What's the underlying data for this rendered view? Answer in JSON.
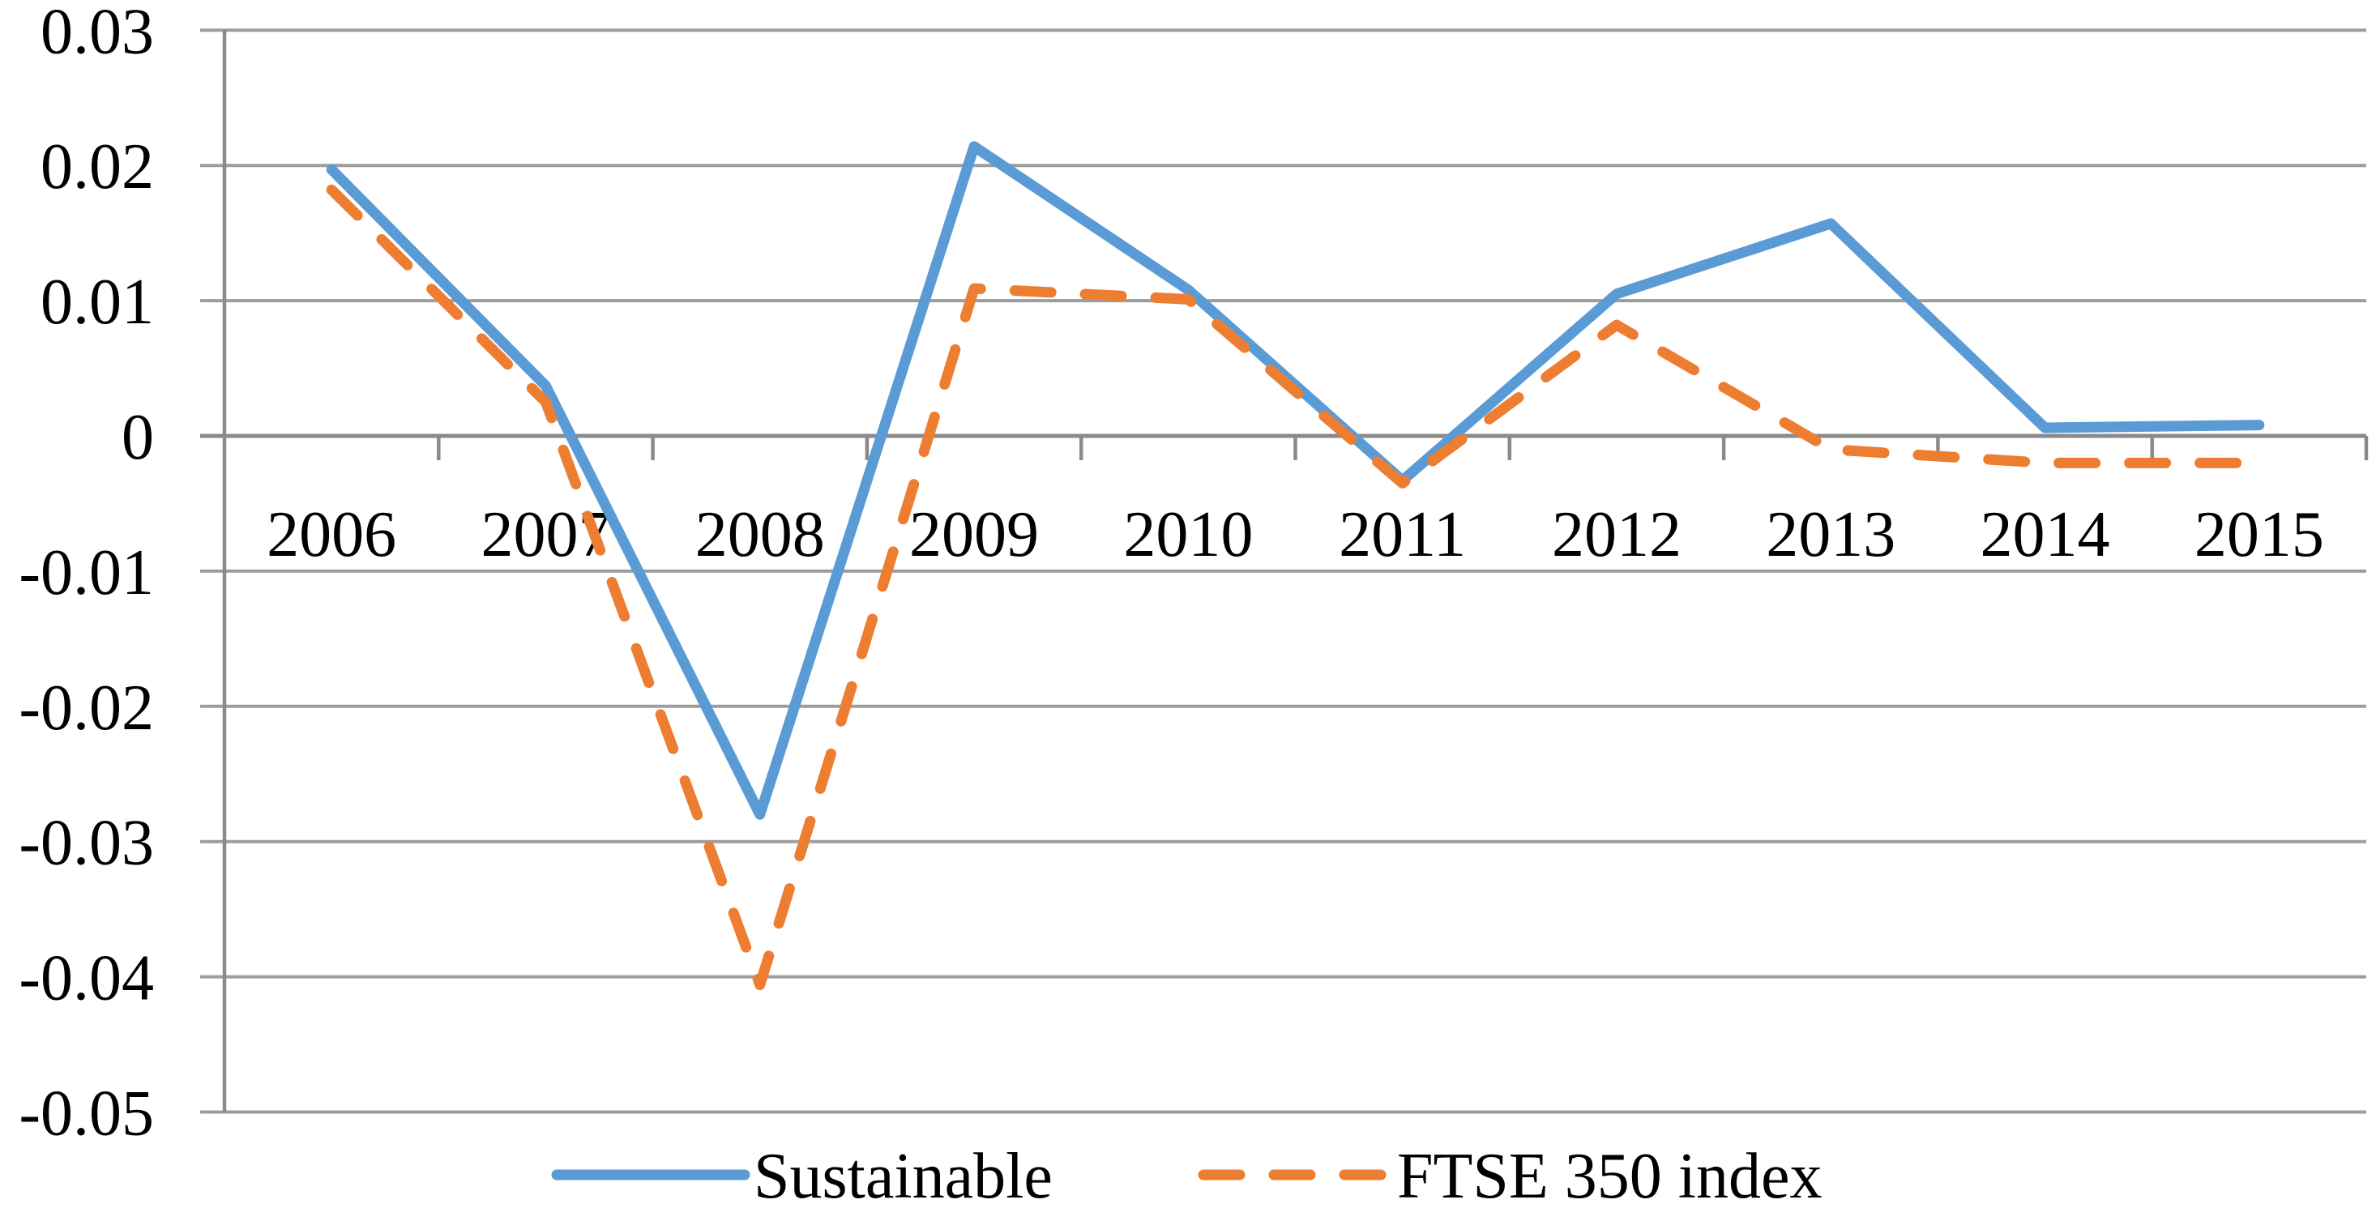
{
  "chart_data": {
    "type": "line",
    "title": "",
    "xlabel": "",
    "ylabel": "",
    "categories": [
      "2006",
      "2007",
      "2008",
      "2009",
      "2010",
      "2011",
      "2012",
      "2013",
      "2014",
      "2015"
    ],
    "series": [
      {
        "name": "Sustainable",
        "line_style": "solid",
        "color": "#5B9BD5",
        "values": [
          0.0197,
          0.0037,
          -0.028,
          0.0214,
          0.0108,
          -0.0033,
          0.0105,
          0.0157,
          0.0006,
          0.0008
        ]
      },
      {
        "name": "FTSE 350 index",
        "line_style": "dashed",
        "color": "#ED7D31",
        "values": [
          0.0182,
          0.0025,
          -0.0406,
          0.0109,
          0.0101,
          -0.0035,
          0.0082,
          -0.001,
          -0.002,
          -0.002
        ]
      }
    ],
    "ylim": [
      -0.05,
      0.03
    ],
    "ytick_step": 0.01,
    "ytick_labels": [
      "0.03",
      "0.02",
      "0.01",
      "0",
      "-0.01",
      "-0.02",
      "-0.03",
      "-0.04",
      "-0.05"
    ],
    "grid": true,
    "legend_position": "bottom",
    "grid_color": "#9d9d9d",
    "axis_color": "#8a8a8a",
    "text_color": "#000000",
    "background": "#ffffff"
  }
}
